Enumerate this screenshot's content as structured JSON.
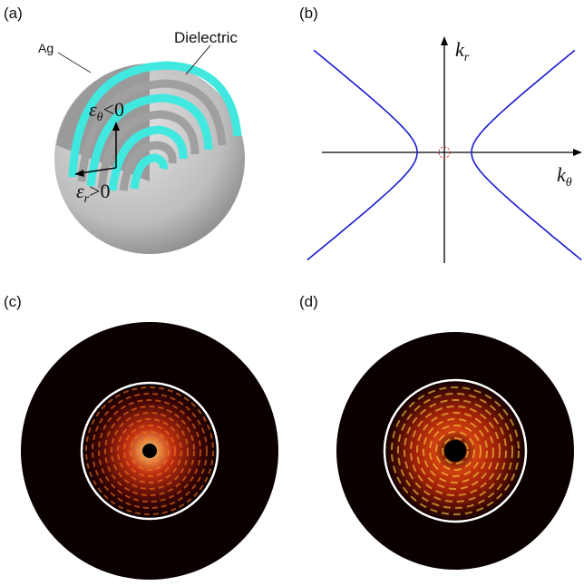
{
  "panel_labels": [
    "(a)",
    "(b)",
    "(c)",
    "(d)"
  ],
  "panel_a": {
    "material_labels": [
      "Ag",
      "Dielectric"
    ],
    "permittivity": [
      {
        "symbol": "ε",
        "sub": "θ",
        "relation": "<0"
      },
      {
        "symbol": "ε",
        "sub": "r",
        "relation": ">0"
      }
    ]
  },
  "panel_b": {
    "axes": [
      {
        "symbol": "k",
        "sub": "r"
      },
      {
        "symbol": "k",
        "sub": "θ"
      }
    ]
  }
}
